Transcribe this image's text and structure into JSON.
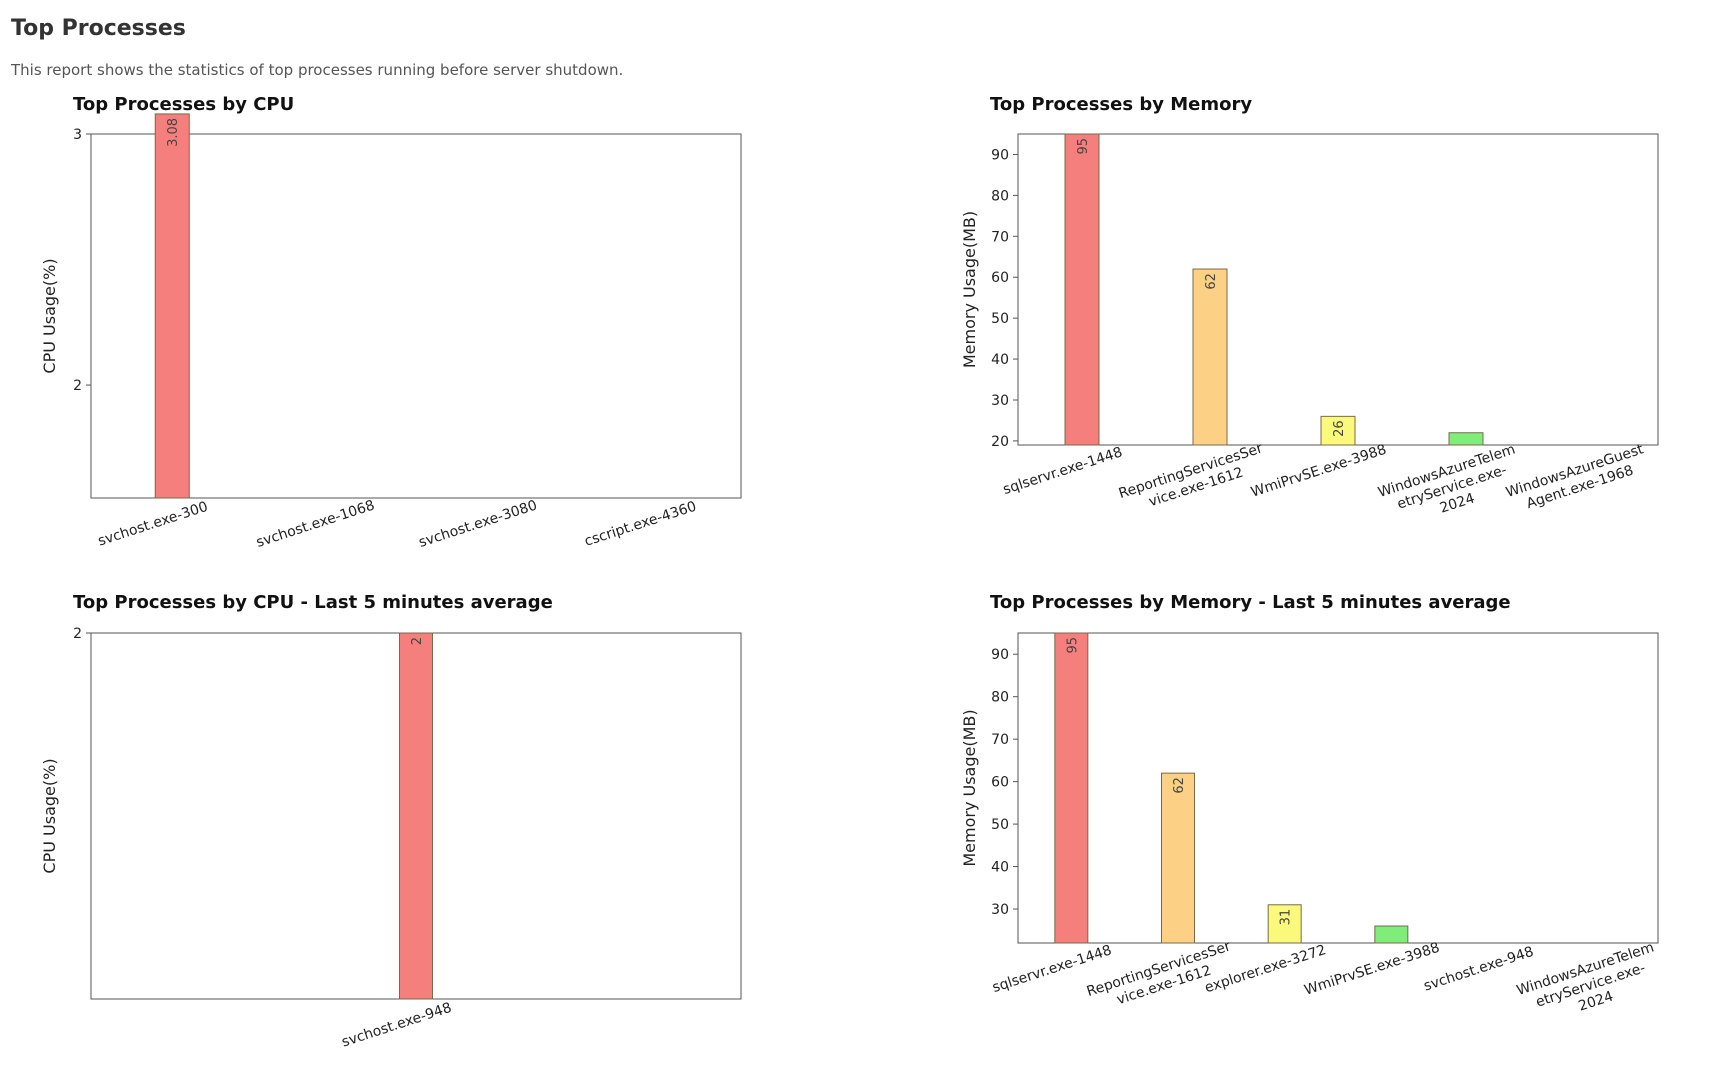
{
  "header": {
    "title": "Top Processes",
    "description": "This report shows the statistics of top processes running before server shutdown."
  },
  "colors": {
    "bar_fills": [
      "#f47f7d",
      "#fdd185",
      "#fbf97b",
      "#7fed7a"
    ],
    "bar_stroke": "#7a6a4a",
    "frame": "#555555"
  },
  "chart_data": [
    {
      "type": "bar",
      "title": "Top Processes by CPU",
      "ylabel": "CPU Usage(%)",
      "categories": [
        [
          "svchost.exe-300"
        ],
        [
          "svchost.exe-1068"
        ],
        [
          "svchost.exe-3080"
        ],
        [
          "cscript.exe-4360"
        ]
      ],
      "values": [
        3.08,
        null,
        null,
        null
      ],
      "value_labels": [
        "3.08",
        "",
        "",
        ""
      ],
      "ylim": [
        1.55,
        3.0
      ],
      "yticks": [
        2,
        3
      ],
      "tick_labels": [
        "2",
        "3"
      ],
      "grid": false
    },
    {
      "type": "bar",
      "title": "Top Processes by Memory",
      "ylabel": "Memory Usage(MB)",
      "categories": [
        [
          "sqlservr.exe-1448"
        ],
        [
          "ReportingServicesSer",
          "vice.exe-1612"
        ],
        [
          "WmiPrvSE.exe-3988"
        ],
        [
          "WindowsAzureTelem",
          "etryService.exe-",
          "2024"
        ],
        [
          "WindowsAzureGuest",
          "Agent.exe-1968"
        ]
      ],
      "values": [
        95,
        62,
        26,
        22,
        19
      ],
      "value_labels": [
        "95",
        "62",
        "26",
        "",
        ""
      ],
      "ylim": [
        19,
        95
      ],
      "yticks": [
        20,
        30,
        40,
        50,
        60,
        70,
        80,
        90
      ],
      "tick_labels": [
        "20",
        "30",
        "40",
        "50",
        "60",
        "70",
        "80",
        "90"
      ],
      "grid": false
    },
    {
      "type": "bar",
      "title": "Top Processes by CPU - Last 5 minutes average",
      "ylabel": "CPU Usage(%)",
      "categories": [
        [
          "svchost.exe-948"
        ]
      ],
      "values": [
        2
      ],
      "value_labels": [
        "2"
      ],
      "ylim": [
        1.1,
        2.0
      ],
      "yticks": [
        2
      ],
      "tick_labels": [
        "2"
      ],
      "grid": false
    },
    {
      "type": "bar",
      "title": "Top Processes by Memory - Last 5 minutes average",
      "ylabel": "Memory Usage(MB)",
      "categories": [
        [
          "sqlservr.exe-1448"
        ],
        [
          "ReportingServicesSer",
          "vice.exe-1612"
        ],
        [
          "explorer.exe-3272"
        ],
        [
          "WmiPrvSE.exe-3988"
        ],
        [
          "svchost.exe-948"
        ],
        [
          "WindowsAzureTelem",
          "etryService.exe-",
          "2024"
        ]
      ],
      "values": [
        95,
        62,
        31,
        26,
        22,
        22
      ],
      "value_labels": [
        "95",
        "62",
        "31",
        "",
        "",
        ""
      ],
      "ylim": [
        22,
        95
      ],
      "yticks": [
        30,
        40,
        50,
        60,
        70,
        80,
        90
      ],
      "tick_labels": [
        "30",
        "40",
        "50",
        "60",
        "70",
        "80",
        "90"
      ],
      "grid": false
    }
  ]
}
